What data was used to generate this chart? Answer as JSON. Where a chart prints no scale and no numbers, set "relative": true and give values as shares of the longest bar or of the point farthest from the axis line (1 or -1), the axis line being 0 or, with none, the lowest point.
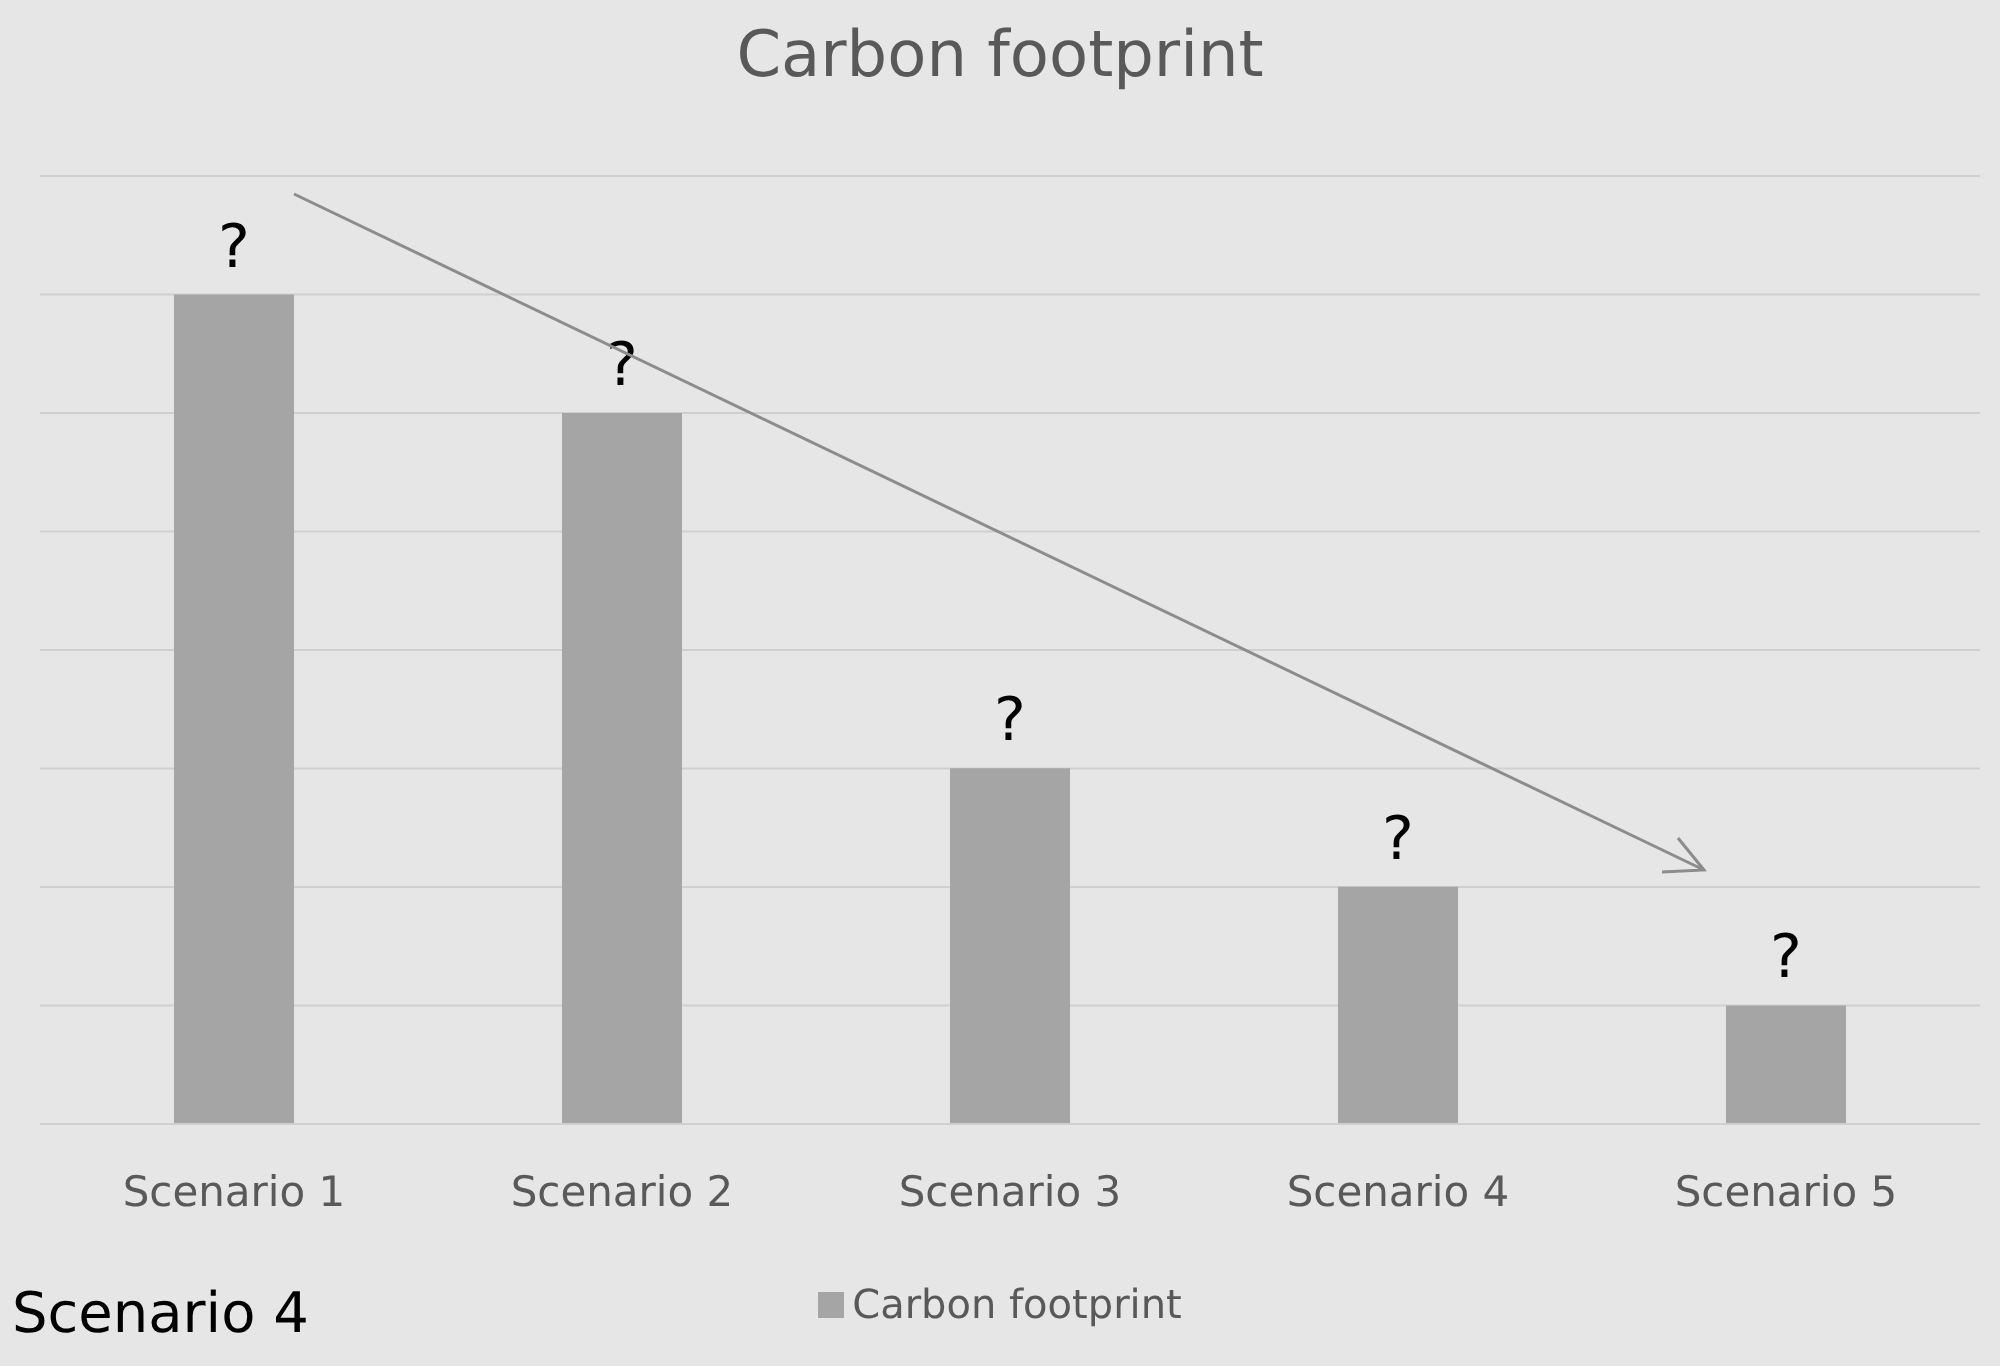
{
  "chart_data": {
    "type": "bar",
    "title": "Carbon footprint",
    "categories": [
      "Scenario 1",
      "Scenario 2",
      "Scenario 3",
      "Scenario 4",
      "Scenario 5"
    ],
    "series": [
      {
        "name": "Carbon footprint",
        "color": "#a5a5a5",
        "values": [
          1,
          0.857,
          0.429,
          0.286,
          0.143
        ]
      }
    ],
    "relative": true,
    "value_labels": [
      "?",
      "?",
      "?",
      "?",
      "?"
    ],
    "grid": "y",
    "legend": "bottom",
    "annotations": [
      "Scenario 4"
    ]
  }
}
